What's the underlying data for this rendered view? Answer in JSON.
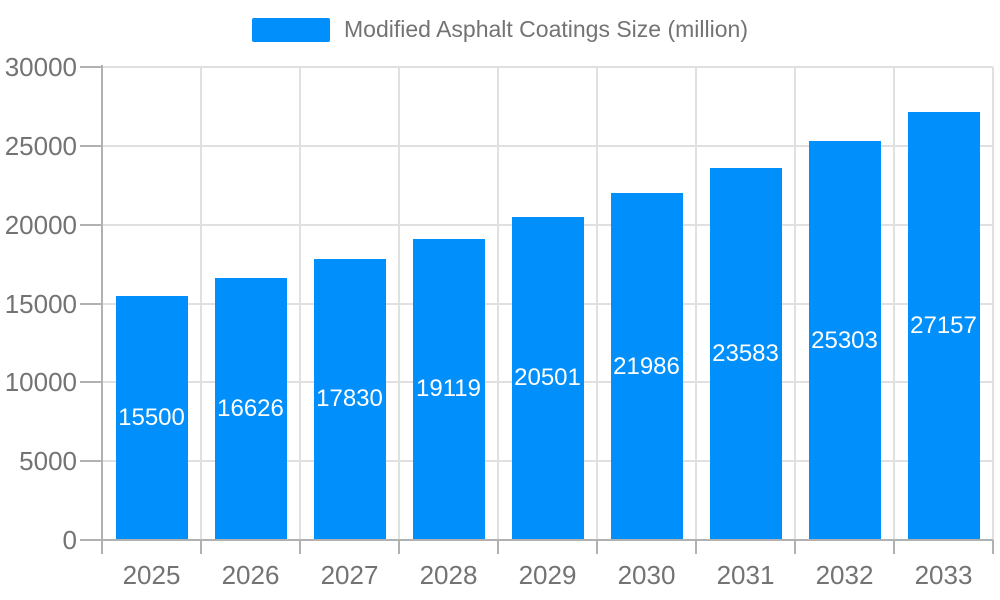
{
  "chart_data": {
    "type": "bar",
    "legend_label": "Modified Asphalt Coatings Size (million)",
    "series": [
      {
        "name": "Modified Asphalt Coatings Size (million)",
        "values": [
          15500,
          16626,
          17830,
          19119,
          20501,
          21986,
          23583,
          25303,
          27157
        ]
      }
    ],
    "categories": [
      "2025",
      "2026",
      "2027",
      "2028",
      "2029",
      "2030",
      "2031",
      "2032",
      "2033"
    ],
    "xlabel": "",
    "ylabel": "",
    "ylim": [
      0,
      30000
    ],
    "yticks": [
      0,
      5000,
      10000,
      15000,
      20000,
      25000,
      30000
    ],
    "grid": true,
    "legend_position": "top",
    "data_labels": "inside-center",
    "colors": {
      "bar": "#008FFB",
      "data_label": "#ffffff",
      "axis_label": "#737373",
      "legend_text": "#737373",
      "gridline": "#e0e0e0",
      "axis_line": "#b1b1b1",
      "background": "#ffffff"
    }
  }
}
